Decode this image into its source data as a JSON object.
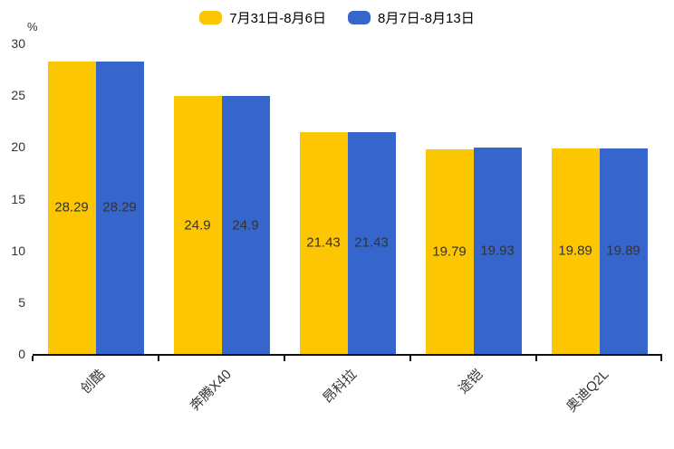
{
  "chart_data": {
    "type": "bar",
    "title": "",
    "xlabel": "",
    "ylabel": "%",
    "ylim": [
      0,
      30
    ],
    "yticks": [
      30,
      25,
      20,
      15,
      10,
      5,
      0
    ],
    "grid": false,
    "legend_position": "top-center",
    "categories": [
      "创酷",
      "奔腾X40",
      "昂科拉",
      "途铠",
      "奥迪Q2L"
    ],
    "series": [
      {
        "name": "7月31日-8月6日",
        "color": "#FCC602",
        "values": [
          28.29,
          24.9,
          21.43,
          19.79,
          19.89
        ]
      },
      {
        "name": "8月7日-8月13日",
        "color": "#3666CB",
        "values": [
          28.29,
          24.9,
          21.43,
          19.93,
          19.89
        ]
      }
    ],
    "value_label_color": "#333333",
    "axis_color": "#111111"
  }
}
